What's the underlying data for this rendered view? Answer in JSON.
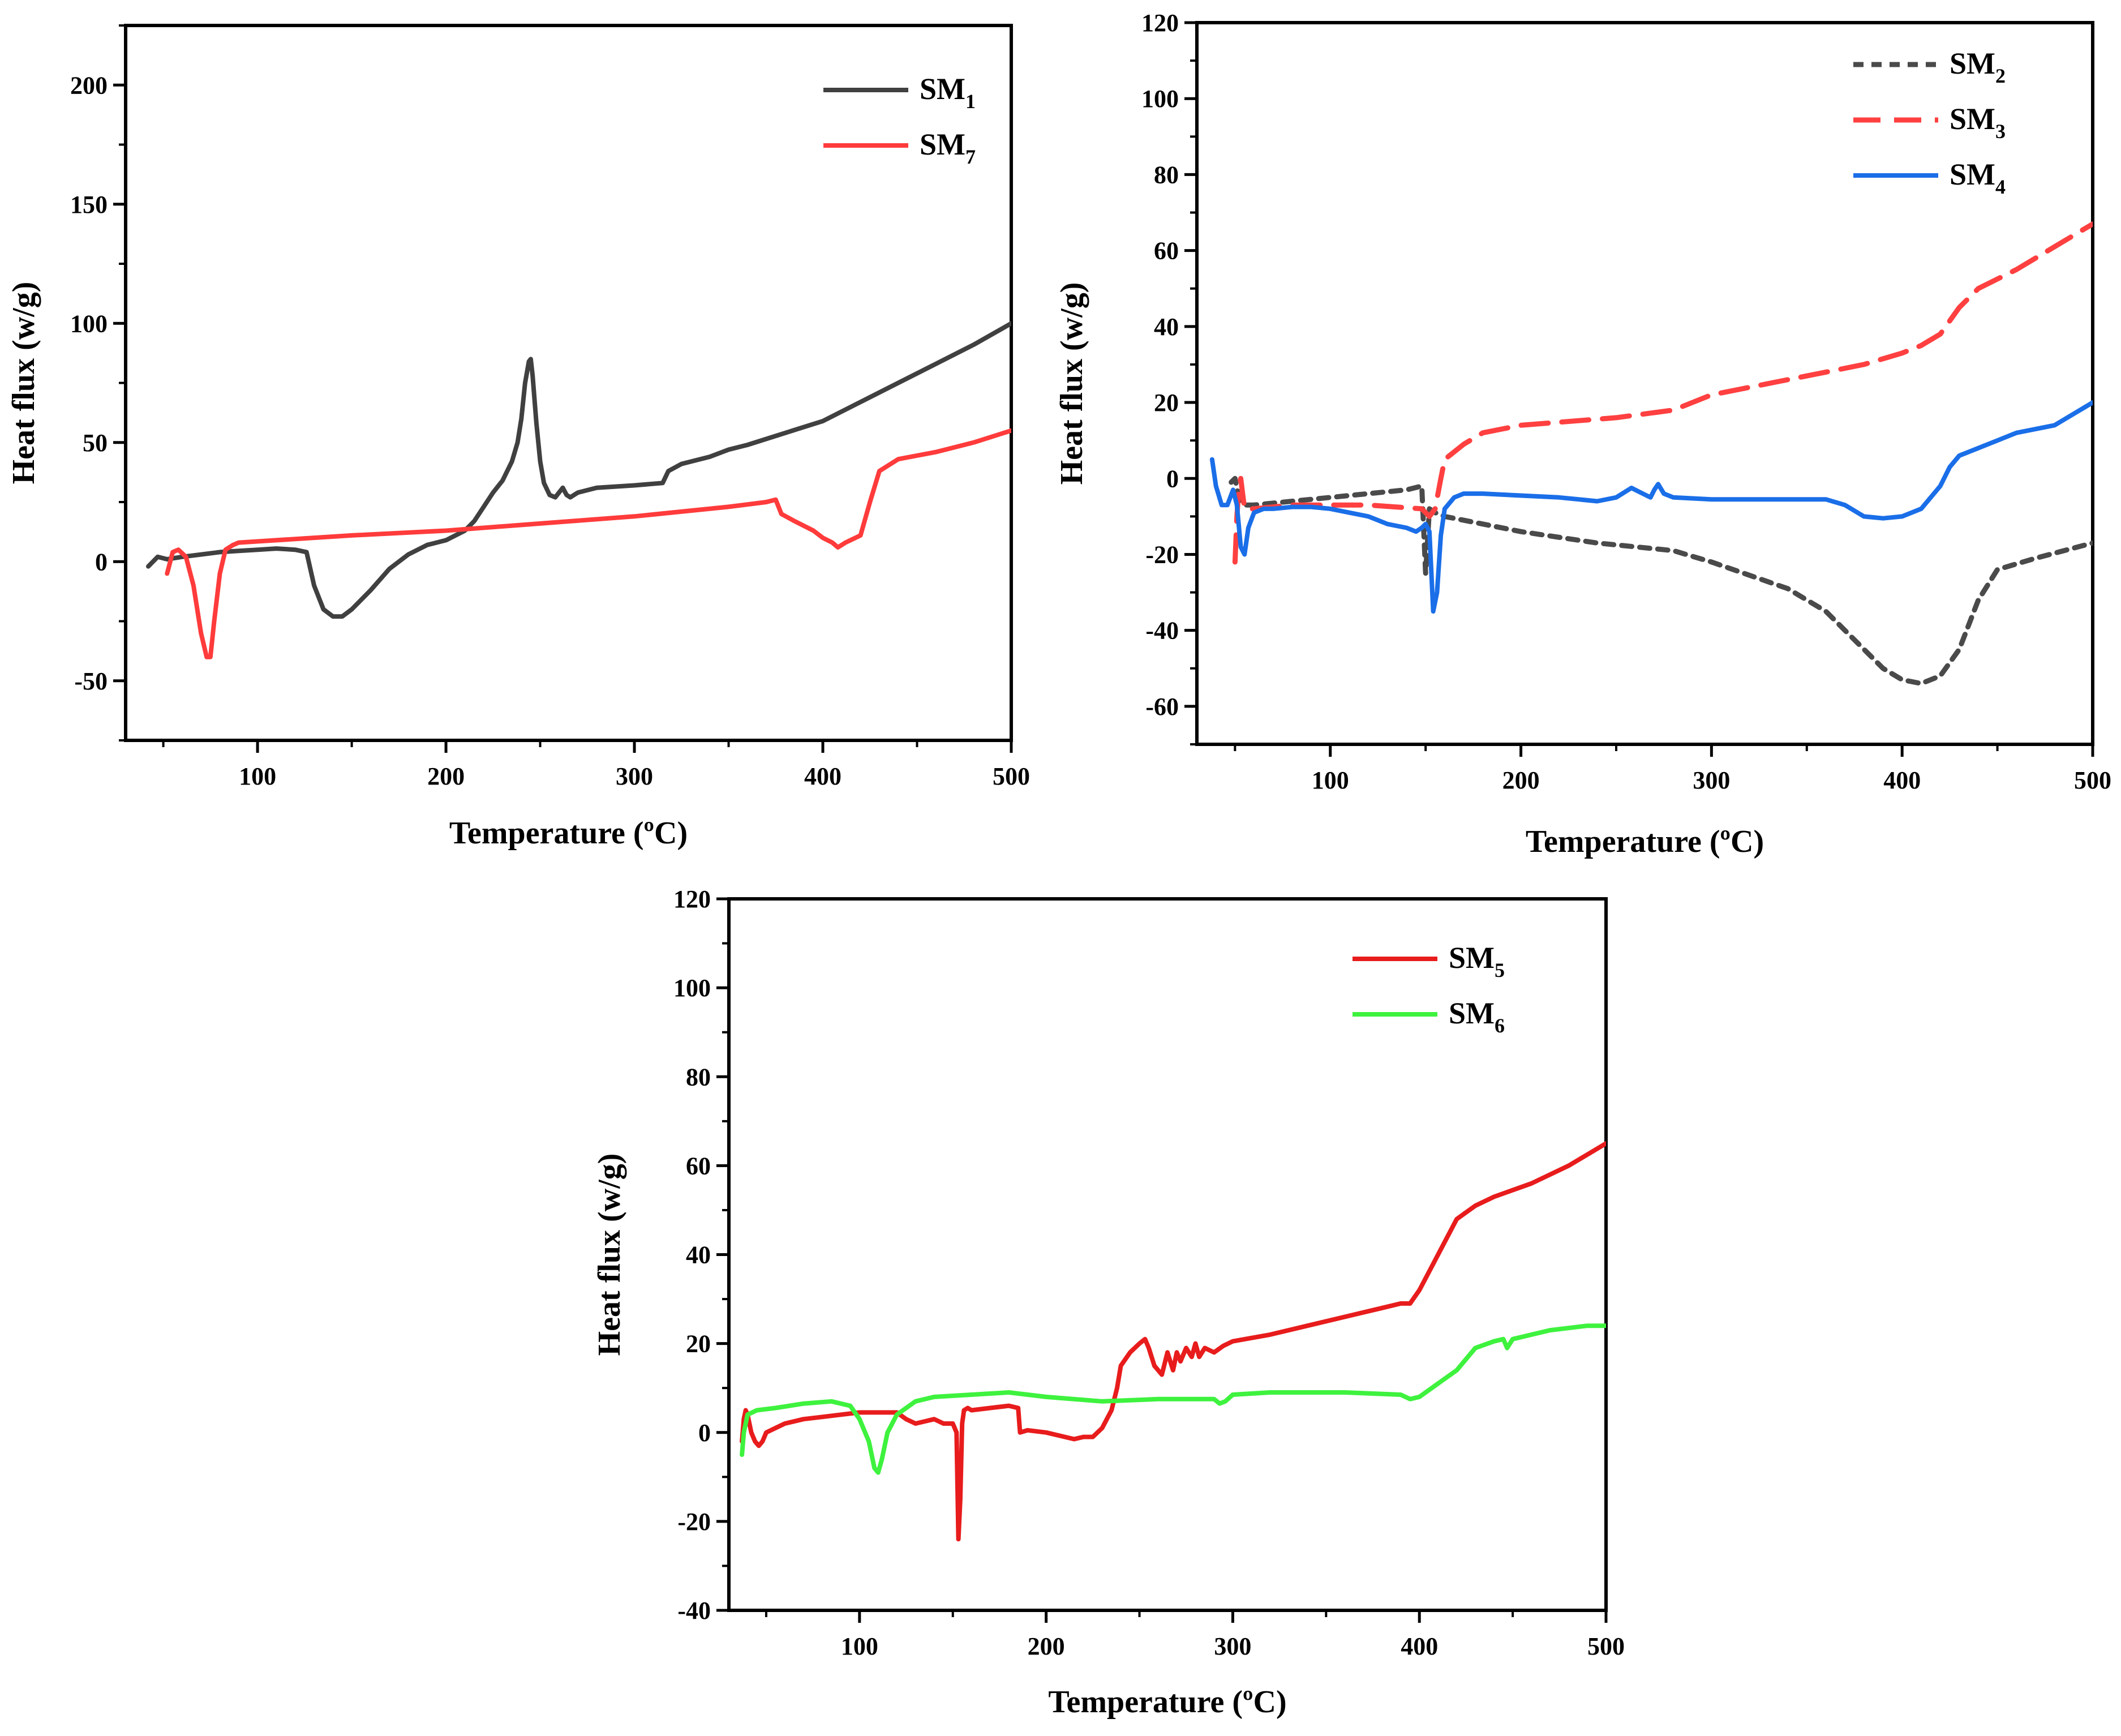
{
  "figure": {
    "description_count": 3
  },
  "chart_data": [
    {
      "id": "panel-a",
      "type": "line",
      "title": "",
      "xlabel": "Temperature (ºC)",
      "ylabel": "Heat flux (w/g)",
      "xlim": [
        30,
        500
      ],
      "ylim": [
        -75,
        225
      ],
      "xticks": [
        100,
        200,
        300,
        400,
        500
      ],
      "yticks": [
        -50,
        0,
        50,
        100,
        150,
        200
      ],
      "xtick_labels": [
        "100",
        "200",
        "300",
        "400",
        "500"
      ],
      "ytick_labels": [
        "-50",
        "0",
        "50",
        "100",
        "150",
        "200"
      ],
      "legend_position": "top-right",
      "series": [
        {
          "name": "SM1",
          "label_main": "SM",
          "label_sub": "1",
          "color": "#404040",
          "dash": "solid",
          "x": [
            42,
            47,
            52,
            60,
            70,
            80,
            90,
            100,
            110,
            120,
            126,
            130,
            135,
            140,
            145,
            150,
            160,
            170,
            180,
            190,
            200,
            210,
            215,
            220,
            225,
            230,
            235,
            238,
            240,
            242,
            244,
            245,
            246,
            248,
            250,
            252,
            255,
            258,
            262,
            264,
            266,
            270,
            280,
            300,
            315,
            318,
            325,
            340,
            350,
            360,
            380,
            400,
            420,
            440,
            460,
            480,
            500
          ],
          "y": [
            -2,
            2,
            1,
            2,
            3,
            4,
            4.5,
            5,
            5.5,
            5,
            4,
            -10,
            -20,
            -23,
            -23,
            -20,
            -12,
            -3,
            3,
            7,
            9,
            13,
            17,
            23,
            29,
            34,
            42,
            50,
            60,
            75,
            84,
            85,
            78,
            58,
            42,
            33,
            28,
            27,
            31,
            28,
            27,
            29,
            31,
            32,
            33,
            38,
            41,
            44,
            47,
            49,
            54,
            59,
            67,
            75,
            83,
            91,
            100
          ]
        },
        {
          "name": "SM7",
          "label_main": "SM",
          "label_sub": "7",
          "color": "#ff3b3b",
          "dash": "solid",
          "x": [
            52,
            55,
            58,
            62,
            66,
            70,
            73,
            75,
            77,
            80,
            83,
            87,
            90,
            100,
            150,
            200,
            250,
            300,
            350,
            370,
            375,
            378,
            385,
            395,
            400,
            405,
            408,
            412,
            420,
            425,
            430,
            440,
            460,
            480,
            500
          ],
          "y": [
            -5,
            4,
            5,
            2,
            -10,
            -30,
            -40,
            -40,
            -25,
            -5,
            5,
            7,
            8,
            8.5,
            11,
            13,
            16,
            19,
            23,
            25,
            26,
            20,
            17,
            13,
            10,
            8,
            6,
            8,
            11,
            25,
            38,
            43,
            46,
            50,
            55
          ]
        }
      ]
    },
    {
      "id": "panel-b",
      "type": "line",
      "title": "",
      "xlabel": "Temperature (ºC)",
      "ylabel": "Heat flux (w/g)",
      "xlim": [
        30,
        500
      ],
      "ylim": [
        -70,
        120
      ],
      "xticks": [
        100,
        200,
        300,
        400,
        500
      ],
      "yticks": [
        -60,
        -40,
        -20,
        0,
        20,
        40,
        60,
        80,
        100,
        120
      ],
      "xtick_labels": [
        "100",
        "200",
        "300",
        "400",
        "500"
      ],
      "ytick_labels": [
        "-60",
        "-40",
        "-20",
        "0",
        "20",
        "40",
        "60",
        "80",
        "100",
        "120"
      ],
      "legend_position": "top-right",
      "series": [
        {
          "name": "SM2",
          "label_main": "SM",
          "label_sub": "2",
          "color": "#4a4a4a",
          "dash": "dotted",
          "x": [
            48,
            50,
            52,
            55,
            60,
            80,
            100,
            120,
            140,
            148,
            150,
            152,
            155,
            160,
            180,
            200,
            240,
            280,
            300,
            340,
            360,
            380,
            390,
            400,
            410,
            420,
            430,
            440,
            450,
            470,
            500
          ],
          "y": [
            -1,
            0,
            -5,
            -7,
            -7,
            -6,
            -5,
            -4,
            -3,
            -2,
            -25,
            -8,
            -9,
            -10,
            -12,
            -14,
            -17,
            -19,
            -22,
            -29,
            -35,
            -45,
            -50,
            -53,
            -54,
            -52,
            -45,
            -32,
            -24,
            -21,
            -17
          ]
        },
        {
          "name": "SM3",
          "label_main": "SM",
          "label_sub": "3",
          "color": "#ff4040",
          "dash": "dashed",
          "x": [
            50,
            51,
            52,
            53,
            55,
            60,
            80,
            100,
            120,
            148,
            150,
            152,
            155,
            158,
            160,
            170,
            180,
            200,
            250,
            280,
            300,
            330,
            360,
            380,
            400,
            410,
            420,
            430,
            440,
            460,
            480,
            500
          ],
          "y": [
            -22,
            -10,
            -3,
            0,
            -8,
            -8,
            -7,
            -7,
            -7,
            -8,
            -9,
            -10,
            -8,
            0,
            5,
            9,
            12,
            14,
            16,
            18,
            22,
            25,
            28,
            30,
            33,
            35,
            38,
            45,
            50,
            55,
            61,
            67
          ]
        },
        {
          "name": "SM4",
          "label_main": "SM",
          "label_sub": "4",
          "color": "#1a6ee8",
          "dash": "solid",
          "x": [
            38,
            40,
            43,
            46,
            49,
            51,
            53,
            55,
            57,
            60,
            65,
            70,
            80,
            90,
            100,
            110,
            120,
            130,
            140,
            145,
            148,
            150,
            152,
            154,
            156,
            158,
            160,
            165,
            170,
            180,
            200,
            220,
            240,
            250,
            258,
            262,
            268,
            270,
            272,
            275,
            280,
            300,
            340,
            360,
            370,
            380,
            390,
            400,
            410,
            420,
            425,
            430,
            440,
            450,
            460,
            480,
            490,
            500
          ],
          "y": [
            5,
            -2,
            -7,
            -7,
            -3,
            -7,
            -18,
            -20,
            -13,
            -9,
            -8,
            -8,
            -7.5,
            -7.5,
            -8,
            -9,
            -10,
            -12,
            -13,
            -14,
            -13,
            -12,
            -14,
            -35,
            -30,
            -15,
            -8,
            -5,
            -4,
            -4,
            -4.5,
            -5,
            -6,
            -5,
            -2.5,
            -3.5,
            -5,
            -3,
            -1.5,
            -4,
            -5,
            -5.5,
            -5.5,
            -5.5,
            -7,
            -10,
            -10.5,
            -10,
            -8,
            -2,
            3,
            6,
            8,
            10,
            12,
            14,
            17,
            20
          ]
        }
      ]
    },
    {
      "id": "panel-c",
      "type": "line",
      "title": "",
      "xlabel": "Temperature (ºC)",
      "ylabel": "Heat flux (w/g)",
      "xlim": [
        30,
        500
      ],
      "ylim": [
        -40,
        120
      ],
      "xticks": [
        100,
        200,
        300,
        400,
        500
      ],
      "yticks": [
        -40,
        -20,
        0,
        20,
        40,
        60,
        80,
        100,
        120
      ],
      "xtick_labels": [
        "100",
        "200",
        "300",
        "400",
        "500"
      ],
      "ytick_labels": [
        "-40",
        "-20",
        "0",
        "20",
        "40",
        "60",
        "80",
        "100",
        "120"
      ],
      "legend_position": "top-right",
      "series": [
        {
          "name": "SM5",
          "label_main": "SM",
          "label_sub": "5",
          "color": "#e81c1c",
          "dash": "solid",
          "x": [
            37,
            38,
            39,
            40,
            42,
            44,
            46,
            48,
            50,
            55,
            60,
            70,
            80,
            90,
            100,
            110,
            120,
            125,
            130,
            135,
            140,
            145,
            150,
            152,
            153,
            154,
            155,
            156,
            158,
            160,
            170,
            180,
            185,
            186,
            190,
            200,
            210,
            215,
            220,
            225,
            230,
            235,
            238,
            240,
            245,
            250,
            253,
            255,
            258,
            262,
            265,
            268,
            270,
            272,
            275,
            278,
            280,
            282,
            285,
            290,
            295,
            300,
            320,
            340,
            360,
            380,
            390,
            395,
            400,
            410,
            420,
            430,
            440,
            460,
            480,
            500
          ],
          "y": [
            -2,
            3,
            5,
            4,
            0,
            -2,
            -3,
            -2,
            0,
            1,
            2,
            3,
            3.5,
            4,
            4.5,
            4.5,
            4.5,
            3,
            2,
            2.5,
            3,
            2,
            2,
            0,
            -24,
            -15,
            2,
            5,
            5.5,
            5,
            5.5,
            6,
            5.5,
            0,
            0.5,
            0,
            -1,
            -1.5,
            -1,
            -1,
            1,
            5,
            10,
            15,
            18,
            20,
            21,
            19,
            15,
            13,
            18,
            14,
            18,
            16,
            19,
            17,
            20,
            17,
            19,
            18,
            19.5,
            20.5,
            22,
            24,
            26,
            28,
            29,
            29,
            32,
            40,
            48,
            51,
            53,
            56,
            60,
            65
          ]
        },
        {
          "name": "SM6",
          "label_main": "SM",
          "label_sub": "6",
          "color": "#3ef23e",
          "dash": "solid",
          "x": [
            37,
            38,
            40,
            45,
            55,
            70,
            85,
            95,
            100,
            105,
            108,
            110,
            112,
            115,
            120,
            130,
            140,
            160,
            180,
            200,
            230,
            260,
            290,
            293,
            296,
            300,
            320,
            360,
            390,
            395,
            400,
            410,
            420,
            430,
            440,
            445,
            447,
            450,
            470,
            490,
            500
          ],
          "y": [
            -5,
            0,
            4,
            5,
            5.5,
            6.5,
            7,
            6,
            3,
            -2,
            -8,
            -9,
            -6,
            0,
            4,
            7,
            8,
            8.5,
            9,
            8,
            7,
            7.5,
            7.5,
            6.5,
            7,
            8.5,
            9,
            9,
            8.5,
            7.5,
            8,
            11,
            14,
            19,
            20.5,
            21,
            19,
            21,
            23,
            24,
            24
          ]
        }
      ]
    }
  ]
}
